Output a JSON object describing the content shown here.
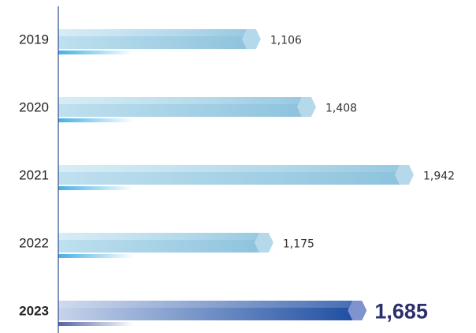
{
  "chart_data": {
    "type": "bar",
    "orientation": "horizontal",
    "categories": [
      "2019",
      "2020",
      "2021",
      "2022",
      "2023"
    ],
    "values": [
      1106,
      1408,
      1942,
      1175,
      1685
    ],
    "value_labels": [
      "1,106",
      "1,408",
      "1,942",
      "1,175",
      "1,685"
    ],
    "highlight_index": 4,
    "xlim": [
      0,
      2000
    ],
    "grid": false,
    "legend": "none",
    "colors": {
      "bar": "#8ec3dd",
      "bar_light": "#bfe0ef",
      "bar_underline": "#45b0e4",
      "tip": "#b5d9ea",
      "highlight_start": "#c7d3ea",
      "highlight_end": "#1f4fa2",
      "highlight_tip": "#7f93cf",
      "highlight_text": "#2b2f6e",
      "axis": "#2c4a8a"
    }
  }
}
